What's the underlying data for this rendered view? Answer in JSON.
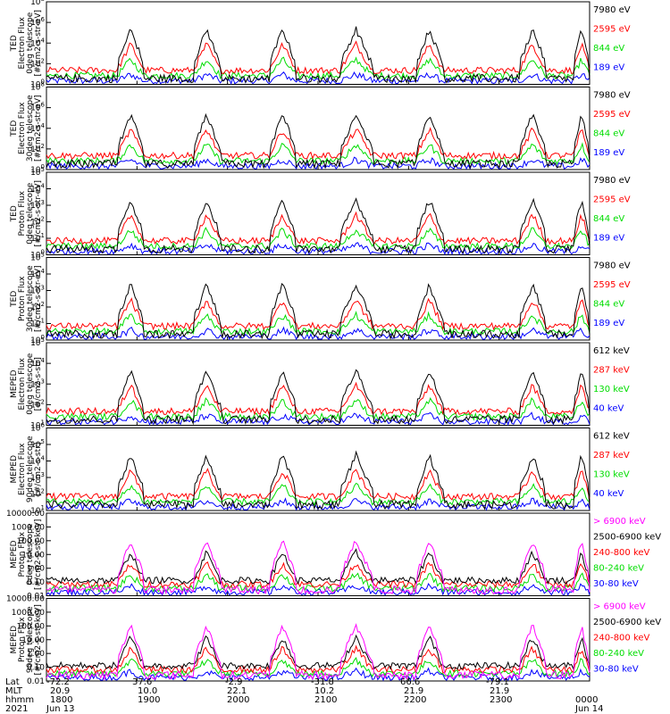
{
  "chart_data": [
    {
      "type": "line",
      "ylabel": [
        "TED",
        "Electron Flux",
        "0deg telescope",
        "[#/cm2-s-str-eV]"
      ],
      "ylim": [
        1,
        100000000
      ],
      "yscale": "log",
      "yticks": [
        "10^0",
        "10^2",
        "10^4",
        "10^6",
        "10^8"
      ],
      "series": [
        {
          "name": "7980 eV",
          "color": "#000000"
        },
        {
          "name": "2595 eV",
          "color": "#ff0000"
        },
        {
          "name": "844 eV",
          "color": "#00dd00"
        },
        {
          "name": "189 eV",
          "color": "#0000ff"
        }
      ]
    },
    {
      "type": "line",
      "ylabel": [
        "TED",
        "Electron Flux",
        "30deg telescope",
        "[#/cm2-s-str-eV]"
      ],
      "ylim": [
        1,
        100000000
      ],
      "yscale": "log",
      "yticks": [
        "10^0",
        "10^2",
        "10^4",
        "10^6",
        "10^8"
      ],
      "series": [
        {
          "name": "7980 eV",
          "color": "#000000"
        },
        {
          "name": "2595 eV",
          "color": "#ff0000"
        },
        {
          "name": "844 eV",
          "color": "#00dd00"
        },
        {
          "name": "189 eV",
          "color": "#0000ff"
        }
      ]
    },
    {
      "type": "line",
      "ylabel": [
        "TED",
        "Proton Flux",
        "0deg telescope",
        "[#/cm2-s-str-eV]"
      ],
      "ylim": [
        1,
        100000
      ],
      "yscale": "log",
      "yticks": [
        "10^0",
        "10^1",
        "10^2",
        "10^3",
        "10^4",
        "10^5"
      ],
      "series": [
        {
          "name": "7980 eV",
          "color": "#000000"
        },
        {
          "name": "2595 eV",
          "color": "#ff0000"
        },
        {
          "name": "844 eV",
          "color": "#00dd00"
        },
        {
          "name": "189 eV",
          "color": "#0000ff"
        }
      ]
    },
    {
      "type": "line",
      "ylabel": [
        "TED",
        "Proton Flux",
        "30deg telescope",
        "[#/cm2-s-str-eV]"
      ],
      "ylim": [
        1,
        100000
      ],
      "yscale": "log",
      "yticks": [
        "10^0",
        "10^1",
        "10^2",
        "10^3",
        "10^4",
        "10^5"
      ],
      "series": [
        {
          "name": "7980 eV",
          "color": "#000000"
        },
        {
          "name": "2595 eV",
          "color": "#ff0000"
        },
        {
          "name": "844 eV",
          "color": "#00dd00"
        },
        {
          "name": "189 eV",
          "color": "#0000ff"
        }
      ]
    },
    {
      "type": "line",
      "ylabel": [
        "MEPED",
        "Electron Flux",
        "0deg telescope",
        "[#/cm2-s-str]"
      ],
      "ylim": [
        10,
        100000
      ],
      "yscale": "log",
      "yticks": [
        "10^1",
        "10^2",
        "10^3",
        "10^4",
        "10^5"
      ],
      "series": [
        {
          "name": "612 keV",
          "color": "#000000"
        },
        {
          "name": "287 keV",
          "color": "#ff0000"
        },
        {
          "name": "130 keV",
          "color": "#00dd00"
        },
        {
          "name": "40 keV",
          "color": "#0000ff"
        }
      ]
    },
    {
      "type": "line",
      "ylabel": [
        "MEPED",
        "Electron Flux",
        "90deg telescope",
        "[#/cm2-s-str]"
      ],
      "ylim": [
        10,
        1000000
      ],
      "yscale": "log",
      "yticks": [
        "10^1",
        "10^2",
        "10^3",
        "10^4",
        "10^5",
        "10^6"
      ],
      "series": [
        {
          "name": "612 keV",
          "color": "#000000"
        },
        {
          "name": "287 keV",
          "color": "#ff0000"
        },
        {
          "name": "130 keV",
          "color": "#00dd00"
        },
        {
          "name": "40 keV",
          "color": "#0000ff"
        }
      ]
    },
    {
      "type": "line",
      "ylabel": [
        "MEPED",
        "Proton Flux",
        "0deg telescope",
        "[#/cm2-s-str-keV]"
      ],
      "ylim": [
        0.01,
        10000
      ],
      "yscale": "log",
      "yticks": [
        "0.01",
        "0.10",
        "1.00",
        "10.00",
        "100.00",
        "1000.00",
        "10000.00"
      ],
      "series": [
        {
          "name": "> 6900 keV",
          "color": "#ff00ff"
        },
        {
          "name": "2500-6900 keV",
          "color": "#000000"
        },
        {
          "name": "240-800 keV",
          "color": "#ff0000"
        },
        {
          "name": "80-240 keV",
          "color": "#00dd00"
        },
        {
          "name": "30-80 keV",
          "color": "#0000ff"
        }
      ]
    },
    {
      "type": "line",
      "ylabel": [
        "MEPED",
        "Proton Flux",
        "90deg telescope",
        "[#/cm2-s-str-keV]"
      ],
      "ylim": [
        0.01,
        10000
      ],
      "yscale": "log",
      "yticks": [
        "0.01",
        "0.10",
        "1.00",
        "10.00",
        "100.00",
        "1000.00",
        "10000.00"
      ],
      "series": [
        {
          "name": "> 6900 keV",
          "color": "#ff00ff"
        },
        {
          "name": "2500-6900 keV",
          "color": "#000000"
        },
        {
          "name": "240-800 keV",
          "color": "#ff0000"
        },
        {
          "name": "80-240 keV",
          "color": "#00dd00"
        },
        {
          "name": "30-80 keV",
          "color": "#0000ff"
        }
      ]
    }
  ],
  "x_axis": {
    "row_labels": [
      "Lat",
      "MLT",
      "hhmm",
      "2021"
    ],
    "lat": [
      "-72.2",
      "37.6",
      "-2.9",
      "-31.8",
      "66.6",
      "-79.1"
    ],
    "mlt": [
      "20.9",
      "10.0",
      "22.1",
      "10.2",
      "21.9",
      "21.9"
    ],
    "hhmm": [
      "1800",
      "1900",
      "2000",
      "2100",
      "2200",
      "2300",
      "0000"
    ],
    "dates": [
      "Jun 13",
      "Jun 14"
    ]
  }
}
